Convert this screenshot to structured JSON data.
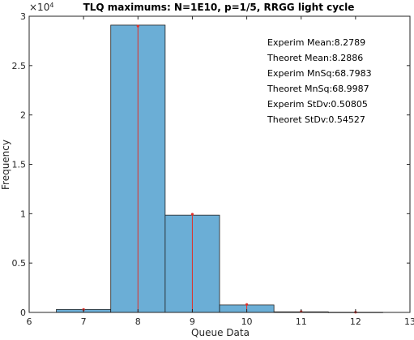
{
  "chart_data": {
    "type": "bar",
    "title": "TLQ maximums: N=1E10, p=1/5, RRGG light cycle",
    "xlabel": "Queue Data",
    "ylabel": "Frequency",
    "exponent_label": "×10",
    "exponent_power": "4",
    "xlim": [
      6,
      13
    ],
    "ylim": [
      0,
      30000
    ],
    "x_ticks": [
      "6",
      "7",
      "8",
      "9",
      "10",
      "11",
      "12",
      "13"
    ],
    "y_ticks": [
      "0",
      "0.5",
      "1",
      "1.5",
      "2",
      "2.5",
      "3"
    ],
    "bin_width": 1,
    "bins": [
      {
        "center": 7,
        "value": 300
      },
      {
        "center": 8,
        "value": 29100
      },
      {
        "center": 9,
        "value": 9850
      },
      {
        "center": 10,
        "value": 750
      },
      {
        "center": 11,
        "value": 60
      },
      {
        "center": 12,
        "value": 15
      }
    ],
    "theoretical_series": {
      "x": [
        7,
        8,
        9,
        10,
        11,
        12
      ],
      "values": [
        300,
        29000,
        9950,
        800,
        80,
        20
      ]
    },
    "bar_color": "#6baed6",
    "marker_color": "#e0302a",
    "grid": false,
    "annotations": [
      "Experim Mean:8.2789",
      "Theoret Mean:8.2886",
      "Experim MnSq:68.7983",
      "Theoret MnSq:68.9987",
      "Experim StDv:0.50805",
      "Theoret StDv:0.54527"
    ]
  }
}
